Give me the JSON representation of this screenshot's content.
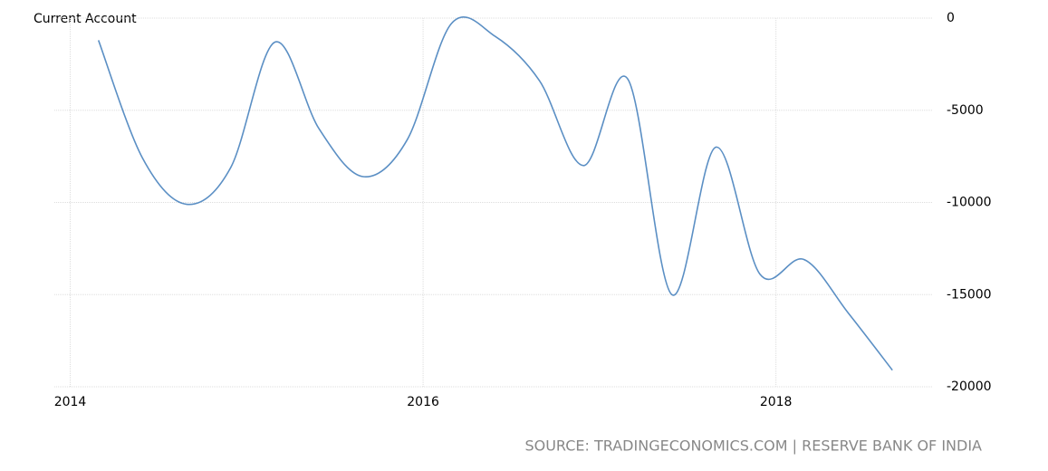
{
  "chart_data": {
    "type": "line",
    "title": "Current Account",
    "source": "SOURCE: TRADINGECONOMICS.COM | RESERVE BANK OF INDIA",
    "x": [
      2014.16,
      2014.41,
      2014.66,
      2014.91,
      2015.16,
      2015.41,
      2015.66,
      2015.91,
      2016.16,
      2016.41,
      2016.66,
      2016.91,
      2017.16,
      2017.41,
      2017.66,
      2017.91,
      2018.16,
      2018.41,
      2018.66
    ],
    "series": [
      {
        "name": "Current Account",
        "color": "#5b8fc4",
        "values": [
          -1200,
          -7600,
          -10100,
          -8100,
          -1300,
          -6000,
          -8600,
          -6600,
          -300,
          -1000,
          -3400,
          -8000,
          -3300,
          -15000,
          -7000,
          -13900,
          -13100,
          -16000,
          -19100
        ]
      }
    ],
    "xlim": [
      2013.91,
      2018.89
    ],
    "xticks": [
      2014,
      2016,
      2018
    ],
    "ylim": [
      -20000,
      0
    ],
    "yticks": [
      0,
      -5000,
      -10000,
      -15000,
      -20000
    ],
    "grid": true
  }
}
